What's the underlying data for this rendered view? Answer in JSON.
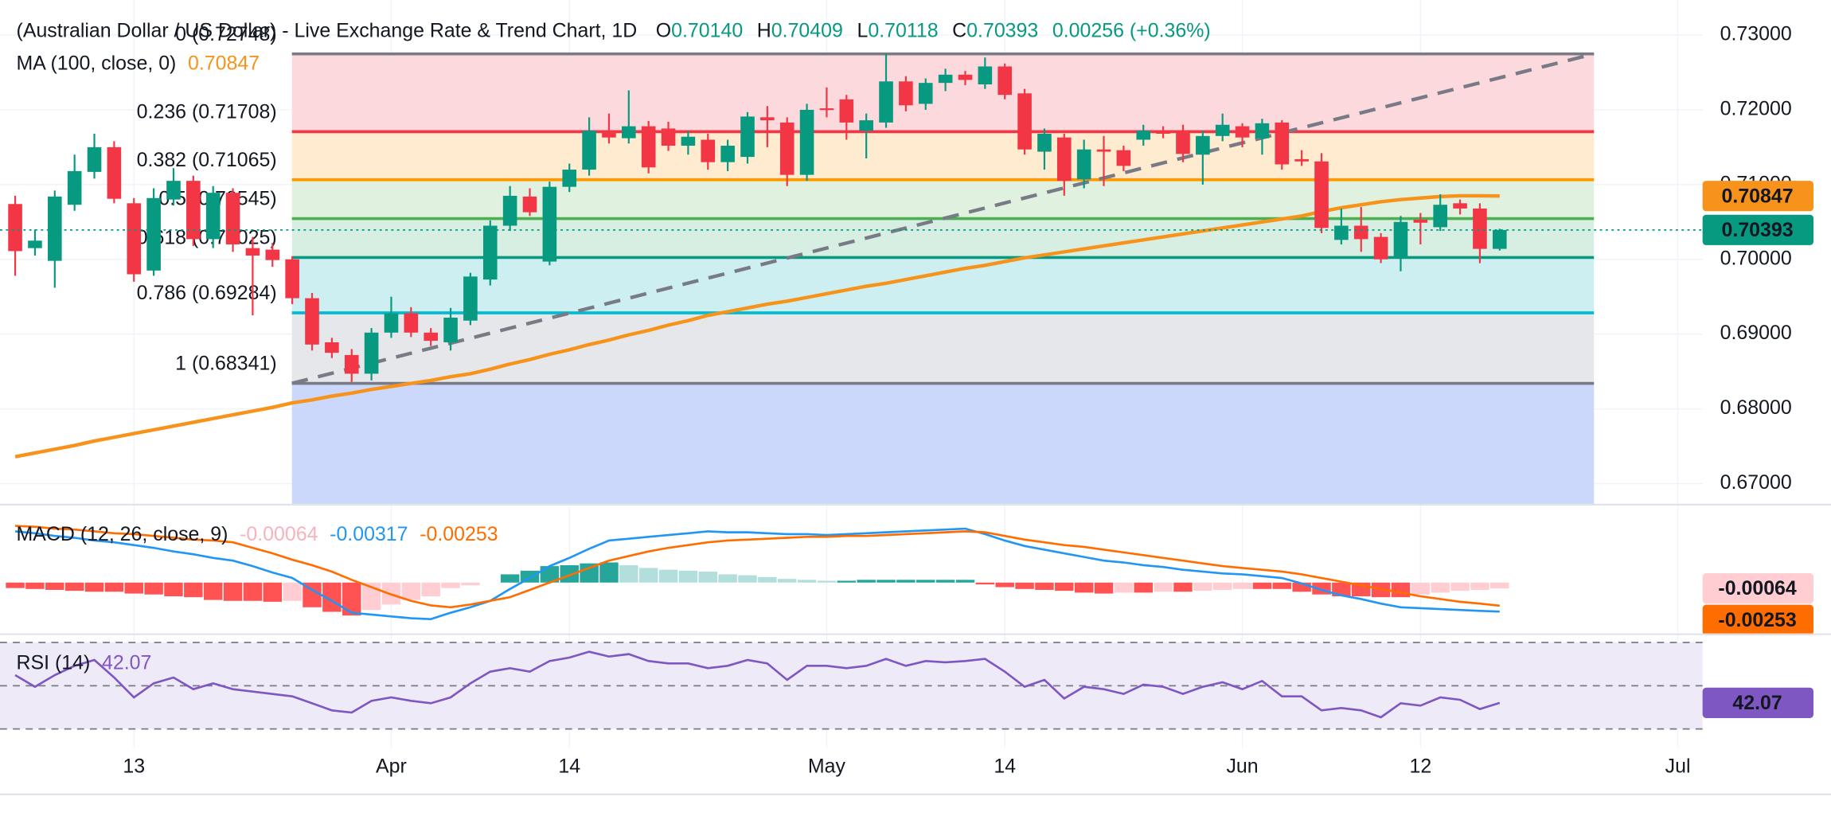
{
  "chart_data": [
    {
      "type": "candlestick",
      "title": "(Australian Dollar / US Dollar) - Live Exchange Rate & Trend Chart, 1D",
      "ohlc_header": [
        {
          "key": "O",
          "value": "0.70140"
        },
        {
          "key": "H",
          "value": "0.70409"
        },
        {
          "key": "L",
          "value": "0.70118"
        },
        {
          "key": "C",
          "value": "0.70393"
        }
      ],
      "change": "0.00256 (+0.36%)",
      "categories": [
        null,
        null,
        null,
        null,
        null,
        null,
        "13",
        null,
        null,
        null,
        null,
        null,
        null,
        null,
        null,
        null,
        null,
        null,
        null,
        "Apr",
        null,
        null,
        null,
        null,
        null,
        null,
        null,
        null,
        "14",
        null,
        null,
        null,
        null,
        null,
        null,
        null,
        null,
        null,
        null,
        null,
        null,
        "May",
        null,
        null,
        null,
        null,
        null,
        null,
        null,
        null,
        "14",
        null,
        null,
        null,
        null,
        null,
        null,
        null,
        null,
        null,
        null,
        null,
        "Jun",
        null,
        null,
        null,
        null,
        null,
        null,
        null,
        null,
        "12",
        null,
        null,
        null,
        null,
        null,
        null,
        null,
        null,
        null,
        null,
        null,
        null,
        "Jul"
      ],
      "open": [
        0.7074,
        0.7015,
        0.6998,
        0.7073,
        0.7117,
        0.715,
        0.7075,
        0.6985,
        0.708,
        0.7105,
        0.7027,
        0.7089,
        0.7015,
        0.7013,
        0.7,
        0.6948,
        0.6889,
        0.6872,
        0.6847,
        0.6902,
        0.6928,
        0.6902,
        0.6889,
        0.6918,
        0.6973,
        0.7045,
        0.7084,
        0.6997,
        0.7097,
        0.712,
        0.7172,
        0.7162,
        0.7178,
        0.7175,
        0.7152,
        0.716,
        0.713,
        0.7137,
        0.719,
        0.7183,
        0.7113,
        0.7202,
        0.7214,
        0.7172,
        0.7183,
        0.7238,
        0.7208,
        0.7236,
        0.7247,
        0.7234,
        0.7258,
        0.7222,
        0.7144,
        0.7163,
        0.7107,
        0.7147,
        0.7146,
        0.716,
        0.7172,
        0.7172,
        0.714,
        0.7165,
        0.7178,
        0.7162,
        0.7183,
        0.7134,
        0.7131,
        0.7026,
        0.7045,
        0.703,
        0.7003,
        0.7053,
        0.7043,
        0.7075,
        0.7068,
        0.7014,
        null,
        null,
        null,
        null,
        null,
        null,
        null,
        null,
        null
      ],
      "high": [
        0.7085,
        0.704,
        0.7092,
        0.714,
        0.7168,
        0.7158,
        0.7082,
        0.7095,
        0.7122,
        0.7112,
        0.7098,
        0.7095,
        0.703,
        0.7022,
        0.7004,
        0.6955,
        0.6895,
        0.688,
        0.6908,
        0.695,
        0.6936,
        0.6908,
        0.6935,
        0.6982,
        0.7052,
        0.7098,
        0.7095,
        0.7104,
        0.7128,
        0.719,
        0.7195,
        0.7226,
        0.7185,
        0.7184,
        0.7172,
        0.7168,
        0.716,
        0.7197,
        0.7205,
        0.719,
        0.7208,
        0.723,
        0.722,
        0.7195,
        0.7275,
        0.7245,
        0.7242,
        0.7255,
        0.7252,
        0.727,
        0.7262,
        0.7228,
        0.7175,
        0.7168,
        0.716,
        0.7165,
        0.7152,
        0.718,
        0.7178,
        0.718,
        0.7172,
        0.7195,
        0.7182,
        0.7188,
        0.7186,
        0.7146,
        0.7142,
        0.7068,
        0.707,
        0.7035,
        0.7058,
        0.7062,
        0.7087,
        0.708,
        0.7075,
        0.70409,
        null,
        null,
        null,
        null,
        null,
        null,
        null,
        null,
        null
      ],
      "low": [
        0.6978,
        0.7005,
        0.6962,
        0.7065,
        0.7108,
        0.7075,
        0.697,
        0.6978,
        0.7072,
        0.7018,
        0.7015,
        0.701,
        0.6925,
        0.699,
        0.694,
        0.6878,
        0.6868,
        0.6836,
        0.6838,
        0.6895,
        0.6896,
        0.6884,
        0.6878,
        0.6912,
        0.6965,
        0.7038,
        0.7058,
        0.6992,
        0.709,
        0.7112,
        0.7155,
        0.7155,
        0.7115,
        0.7145,
        0.714,
        0.712,
        0.7118,
        0.7128,
        0.715,
        0.7098,
        0.7105,
        0.719,
        0.716,
        0.7135,
        0.7176,
        0.7198,
        0.72,
        0.7225,
        0.7233,
        0.7228,
        0.7214,
        0.714,
        0.712,
        0.7085,
        0.7095,
        0.7098,
        0.7118,
        0.7152,
        0.7162,
        0.713,
        0.71,
        0.7158,
        0.715,
        0.714,
        0.712,
        0.7125,
        0.7035,
        0.702,
        0.701,
        0.6995,
        0.6984,
        0.702,
        0.7038,
        0.706,
        0.6995,
        0.70118,
        null,
        null,
        null,
        null,
        null,
        null,
        null,
        null,
        null
      ],
      "close": [
        0.7011,
        0.7025,
        0.7084,
        0.7118,
        0.715,
        0.7081,
        0.698,
        0.7082,
        0.7105,
        0.7027,
        0.7089,
        0.702,
        0.7005,
        0.6999,
        0.6948,
        0.6886,
        0.6875,
        0.6847,
        0.6902,
        0.6928,
        0.6902,
        0.6891,
        0.6922,
        0.6977,
        0.7045,
        0.7085,
        0.7063,
        0.7097,
        0.712,
        0.7172,
        0.7163,
        0.7178,
        0.7123,
        0.7152,
        0.7164,
        0.713,
        0.7152,
        0.7191,
        0.7186,
        0.7113,
        0.72,
        0.72,
        0.7183,
        0.7186,
        0.7238,
        0.7206,
        0.7236,
        0.7247,
        0.724,
        0.7258,
        0.722,
        0.7147,
        0.7168,
        0.7105,
        0.7147,
        0.7144,
        0.7125,
        0.7172,
        0.7168,
        0.7141,
        0.7165,
        0.718,
        0.7163,
        0.7182,
        0.7127,
        0.7131,
        0.7042,
        0.7045,
        0.7027,
        0.7,
        0.705,
        0.7049,
        0.7073,
        0.7068,
        0.7014,
        0.70393,
        null,
        null,
        null,
        null,
        null,
        null,
        null,
        null,
        null
      ],
      "up_color": "#089981",
      "down_color": "#f23645",
      "ylim": [
        0.66719,
        0.73469
      ],
      "yticks": [
        {
          "value": 0.73,
          "label": "0.73000"
        },
        {
          "value": 0.72,
          "label": "0.72000"
        },
        {
          "value": 0.71,
          "label": "0.71000"
        },
        {
          "value": 0.7,
          "label": "0.70000"
        },
        {
          "value": 0.69,
          "label": "0.69000"
        },
        {
          "value": 0.68,
          "label": "0.68000"
        },
        {
          "value": 0.67,
          "label": "0.67000"
        }
      ],
      "grid": true,
      "ma": {
        "name": "MA (100, close, 0)",
        "color": "#f7931a",
        "values": [
          0.6736,
          0.6741,
          0.6746,
          0.6751,
          0.6757,
          0.6762,
          0.6767,
          0.6772,
          0.6777,
          0.6782,
          0.6787,
          0.6792,
          0.6797,
          0.6802,
          0.6808,
          0.6812,
          0.6817,
          0.6821,
          0.6826,
          0.683,
          0.6834,
          0.6838,
          0.6843,
          0.6847,
          0.6853,
          0.686,
          0.6866,
          0.6873,
          0.6879,
          0.6886,
          0.6892,
          0.6899,
          0.6905,
          0.6912,
          0.6918,
          0.6925,
          0.693,
          0.6935,
          0.694,
          0.6944,
          0.6949,
          0.6954,
          0.6959,
          0.6964,
          0.6968,
          0.6973,
          0.6978,
          0.6983,
          0.6988,
          0.6992,
          0.6997,
          0.7002,
          0.7006,
          0.701,
          0.7014,
          0.7018,
          0.7022,
          0.7026,
          0.703,
          0.7034,
          0.7038,
          0.7042,
          0.7046,
          0.705,
          0.7054,
          0.7058,
          0.7064,
          0.7069,
          0.7073,
          0.7077,
          0.708,
          0.7082,
          0.7084,
          0.7085,
          0.7085,
          0.70847,
          null,
          null,
          null,
          null,
          null,
          null,
          null,
          null,
          null
        ]
      },
      "fib": {
        "levels": [
          {
            "label": "0 (0.72748)",
            "price": 0.72748,
            "color": "#787b86"
          },
          {
            "label": "0.236 (0.71708)",
            "price": 0.71708,
            "color": "#f23645"
          },
          {
            "label": "0.382 (0.71065)",
            "price": 0.71065,
            "color": "#ff9800"
          },
          {
            "label": "0.5 (0.70545)",
            "price": 0.70545,
            "color": "#4caf50"
          },
          {
            "label": "0.618 (0.70025)",
            "price": 0.70025,
            "color": "#089981"
          },
          {
            "label": "0.786 (0.69284)",
            "price": 0.69284,
            "color": "#00bcd4"
          },
          {
            "label": "1 (0.68341)",
            "price": 0.68341,
            "color": "#787b86"
          }
        ],
        "fills": [
          "#fcd9dc",
          "#feebd0",
          "#e0f2df",
          "#d7efe3",
          "#cdeff2",
          "#e6e7ea"
        ],
        "below_fill": "#ccd8fb",
        "trend_color": "#787b86"
      }
    },
    {
      "type": "macd",
      "name": "MACD (12, 26, close, 9)",
      "ylim": [
        -0.0054,
        0.0084
      ],
      "histogram": [
        -0.0006,
        -0.0007,
        -0.0008,
        -0.0009,
        -0.001,
        -0.001,
        -0.0012,
        -0.0013,
        -0.0015,
        -0.0016,
        -0.0019,
        -0.002,
        -0.002,
        -0.0021,
        -0.002,
        -0.0027,
        -0.0032,
        -0.0036,
        -0.003,
        -0.0024,
        -0.0019,
        -0.0015,
        -0.0006,
        -0.0003,
        0.0,
        0.0009,
        0.0013,
        0.0018,
        0.0019,
        0.0021,
        0.0022,
        0.0019,
        0.0016,
        0.0014,
        0.0013,
        0.0012,
        0.0009,
        0.0008,
        0.0006,
        0.0004,
        0.0003,
        0.0002,
        0.0002,
        0.0003,
        0.0003,
        0.0003,
        0.0003,
        0.0003,
        0.0003,
        -0.0002,
        -0.0005,
        -0.0007,
        -0.0008,
        -0.0009,
        -0.0011,
        -0.0012,
        -0.0011,
        -0.0011,
        -0.001,
        -0.001,
        -0.0009,
        -0.0008,
        -0.0007,
        -0.0007,
        -0.0007,
        -0.001,
        -0.0013,
        -0.0015,
        -0.0015,
        -0.0016,
        -0.0016,
        -0.0013,
        -0.0011,
        -0.0009,
        -0.0008,
        -0.00064,
        null,
        null,
        null,
        null,
        null,
        null,
        null,
        null,
        null
      ],
      "macd": [
        0.0056,
        0.0054,
        0.0051,
        0.0049,
        0.0046,
        0.0044,
        0.0041,
        0.0038,
        0.0034,
        0.0031,
        0.0027,
        0.0024,
        0.0018,
        0.0011,
        0.0005,
        -0.0008,
        -0.002,
        -0.0033,
        -0.0035,
        -0.0037,
        -0.0039,
        -0.004,
        -0.0033,
        -0.0027,
        -0.002,
        -0.0007,
        0.0005,
        0.0018,
        0.0027,
        0.0037,
        0.0046,
        0.0048,
        0.005,
        0.0052,
        0.0054,
        0.0056,
        0.0055,
        0.0055,
        0.0054,
        0.0053,
        0.0053,
        0.0052,
        0.0053,
        0.0054,
        0.0055,
        0.0056,
        0.0057,
        0.0058,
        0.0059,
        0.0053,
        0.0046,
        0.004,
        0.0036,
        0.0032,
        0.0028,
        0.0024,
        0.0022,
        0.0019,
        0.0017,
        0.0014,
        0.0012,
        0.001,
        0.0009,
        0.0007,
        0.0005,
        -0.0001,
        -0.0008,
        -0.0014,
        -0.0018,
        -0.0023,
        -0.0027,
        -0.0028,
        -0.0029,
        -0.003,
        -0.0031,
        -0.00317,
        null,
        null,
        null,
        null,
        null,
        null,
        null,
        null,
        null
      ],
      "signal": [
        0.0062,
        0.0061,
        0.0059,
        0.0058,
        0.0056,
        0.0054,
        0.0053,
        0.0051,
        0.0049,
        0.0047,
        0.0046,
        0.0044,
        0.0038,
        0.0032,
        0.0025,
        0.0019,
        0.0012,
        0.0003,
        -0.0005,
        -0.0013,
        -0.002,
        -0.0025,
        -0.0027,
        -0.0024,
        -0.002,
        -0.0016,
        -0.0008,
        0.0,
        0.0008,
        0.0016,
        0.0024,
        0.0029,
        0.0034,
        0.0038,
        0.0041,
        0.0044,
        0.0046,
        0.0047,
        0.0048,
        0.0049,
        0.005,
        0.005,
        0.0051,
        0.0051,
        0.0052,
        0.0053,
        0.0054,
        0.0055,
        0.0056,
        0.0055,
        0.0051,
        0.0047,
        0.0044,
        0.0041,
        0.0039,
        0.0036,
        0.0033,
        0.003,
        0.0027,
        0.0024,
        0.0021,
        0.0018,
        0.0016,
        0.0014,
        0.0012,
        0.0009,
        0.0005,
        0.0001,
        -0.0003,
        -0.0007,
        -0.0011,
        -0.0015,
        -0.0018,
        -0.0021,
        -0.0023,
        -0.00253,
        null,
        null,
        null,
        null,
        null,
        null,
        null,
        null,
        null
      ],
      "macd_color": "#2196f3",
      "signal_color": "#ff6d00",
      "hist_colors": {
        "grow_up": "#26a69a",
        "fall_up": "#b2dfdb",
        "grow_down": "#ff5252",
        "fall_down": "#ffcdd2"
      },
      "hist_label_color": "#f7b2bc"
    },
    {
      "type": "rsi",
      "name": "RSI (14)",
      "ylim": [
        21.4,
        72.7
      ],
      "bands": [
        70,
        50,
        30
      ],
      "color": "#7e57c2",
      "band_fill": "#efeaf8",
      "values": [
        54.9,
        49.5,
        54.9,
        59.2,
        61.9,
        53.8,
        44.6,
        51.1,
        53.8,
        48.4,
        51.1,
        48.4,
        47.3,
        46.2,
        45.1,
        41.9,
        38.6,
        37.6,
        43.0,
        44.6,
        43.0,
        41.9,
        44.6,
        51.1,
        56.5,
        58.1,
        56.5,
        61.4,
        63.0,
        65.7,
        63.5,
        64.6,
        61.4,
        60.3,
        60.3,
        58.1,
        59.2,
        61.9,
        60.3,
        52.7,
        59.2,
        59.2,
        58.1,
        59.2,
        62.4,
        59.2,
        61.4,
        60.8,
        61.4,
        62.4,
        56.5,
        49.5,
        52.7,
        44.1,
        49.5,
        48.4,
        46.2,
        50.5,
        49.5,
        46.2,
        49.5,
        51.6,
        48.4,
        52.2,
        45.1,
        45.1,
        38.6,
        39.7,
        38.6,
        35.4,
        41.9,
        40.8,
        44.6,
        43.5,
        39.2,
        42.07,
        null,
        null,
        null,
        null,
        null,
        null,
        null,
        null,
        null
      ]
    }
  ]
}
